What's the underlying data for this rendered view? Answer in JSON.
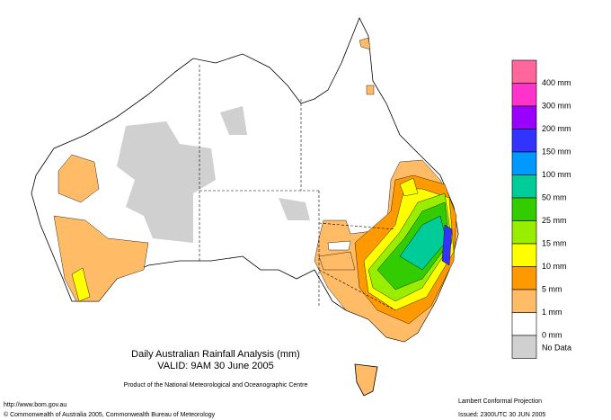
{
  "title": "Daily Australian Rainfall Analysis (mm)",
  "valid": "VALID: 9AM 30 June 2005",
  "product": "Product of the National Meteorological and Oceanographic Centre",
  "url": "http://www.bom.gov.au",
  "copyright": "© Commonwealth of Australia 2005, Commonwealth Bureau of Meteorology",
  "projection": "Lambert Conformal Projection",
  "issued": "Issued: 2300UTC 30 JUN 2005",
  "legend": {
    "colors": [
      "#ff6699",
      "#ff33cc",
      "#9900ff",
      "#3333ff",
      "#0099ff",
      "#00cc99",
      "#33cc00",
      "#99ee00",
      "#ffff00",
      "#ff9900",
      "#ffbb66",
      "#ffffff",
      "#d0d0d0"
    ],
    "labels": [
      "400 mm",
      "300 mm",
      "200 mm",
      "150 mm",
      "100 mm",
      "50 mm",
      "25 mm",
      "15 mm",
      "10 mm",
      "5 mm",
      "1 mm",
      "0 mm",
      "No Data"
    ]
  }
}
